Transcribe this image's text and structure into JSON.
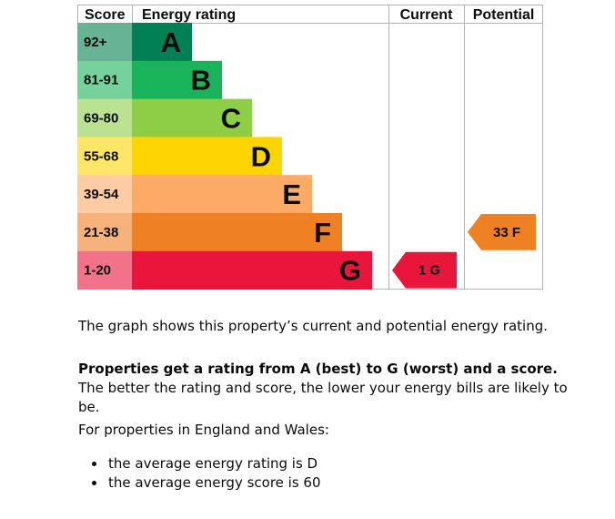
{
  "chart_data": {
    "type": "bar",
    "title": "",
    "columns": {
      "score": "Score",
      "rating": "Energy rating",
      "current": "Current",
      "potential": "Potential"
    },
    "bands": [
      {
        "letter": "A",
        "range": "92+",
        "color": "#008054",
        "light": "#66b396"
      },
      {
        "letter": "B",
        "range": "81-91",
        "color": "#19b459",
        "light": "#75d29b"
      },
      {
        "letter": "C",
        "range": "69-80",
        "color": "#8dce46",
        "light": "#bbe290"
      },
      {
        "letter": "D",
        "range": "55-68",
        "color": "#ffd500",
        "light": "#ffe666"
      },
      {
        "letter": "E",
        "range": "39-54",
        "color": "#fcaa65",
        "light": "#fdcca3"
      },
      {
        "letter": "F",
        "range": "21-38",
        "color": "#ef8023",
        "light": "#f5b37b"
      },
      {
        "letter": "G",
        "range": "1-20",
        "color": "#e9153b",
        "light": "#f27389"
      }
    ],
    "current": {
      "score": 1,
      "band": "G",
      "label": "1 G"
    },
    "potential": {
      "score": 33,
      "band": "F",
      "label": "33 F"
    }
  },
  "text": {
    "intro": "The graph shows this property’s current and potential energy rating.",
    "rating_bold": "Properties get a rating from A (best) to G (worst) and a score.",
    "rating_rest": " The better the rating and score, the lower your energy bills are likely to be.",
    "region_intro": "For properties in England and Wales:",
    "bullets": [
      "the average energy rating is D",
      "the average energy score is 60"
    ]
  }
}
